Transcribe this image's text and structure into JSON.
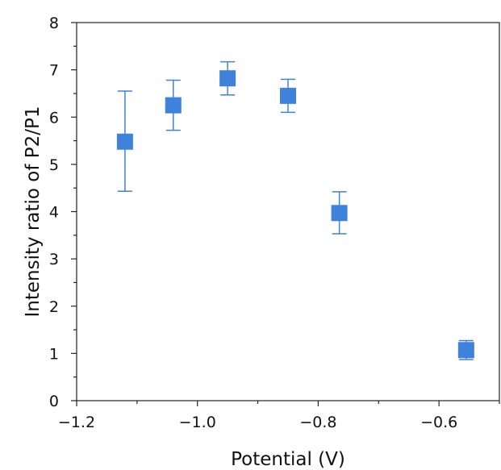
{
  "chart_data": {
    "type": "scatter",
    "title": "",
    "xlabel": "Potential (V)",
    "ylabel": "Intensity ratio of P2/P1",
    "xlim": [
      -1.2,
      -0.5
    ],
    "ylim": [
      0,
      8
    ],
    "xticks": [
      -1.2,
      -1.0,
      -0.8,
      -0.6
    ],
    "xtick_labels": [
      "−1.2",
      "−1.0",
      "−0.8",
      "−0.6"
    ],
    "x_minor_ticks": [
      -1.1,
      -0.9,
      -0.7,
      -0.5
    ],
    "yticks": [
      0,
      1,
      2,
      3,
      4,
      5,
      6,
      7,
      8
    ],
    "ytick_labels": [
      "0",
      "1",
      "2",
      "3",
      "4",
      "5",
      "6",
      "7",
      "8"
    ],
    "y_minor_ticks": [
      0.5,
      1.5,
      2.5,
      3.5,
      4.5,
      5.5,
      6.5,
      7.5
    ],
    "grid": false,
    "legend": "none",
    "marker": "square",
    "color": "#3f82dc",
    "errorbar_color": "#3f82dc",
    "points": [
      {
        "x": -1.12,
        "y": 5.48,
        "err_low": 4.43,
        "err_high": 6.55
      },
      {
        "x": -1.04,
        "y": 6.25,
        "err_low": 5.72,
        "err_high": 6.78
      },
      {
        "x": -0.95,
        "y": 6.82,
        "err_low": 6.47,
        "err_high": 7.17
      },
      {
        "x": -0.85,
        "y": 6.45,
        "err_low": 6.1,
        "err_high": 6.8
      },
      {
        "x": -0.765,
        "y": 3.97,
        "err_low": 3.53,
        "err_high": 4.42
      },
      {
        "x": -0.555,
        "y": 1.07,
        "err_low": 0.87,
        "err_high": 1.27
      }
    ]
  }
}
